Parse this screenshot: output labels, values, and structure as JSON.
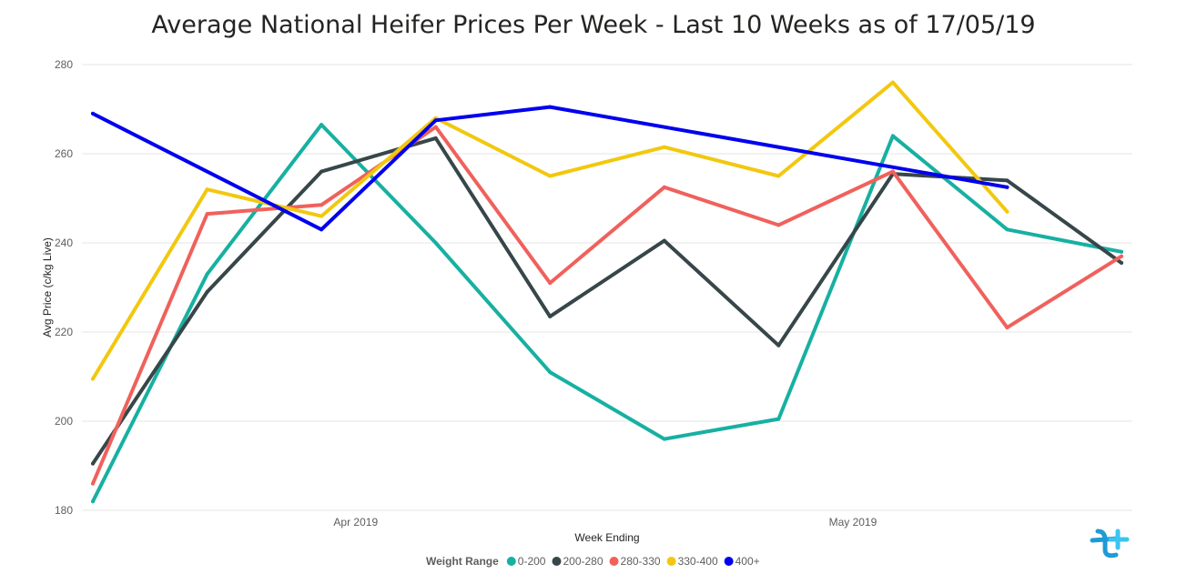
{
  "chart_data": {
    "type": "line",
    "title": "Average National Heifer Prices Per Week - Last 10 Weeks as of 17/05/19",
    "xlabel": "Week Ending",
    "ylabel": "Avg Price (c/kg Live)",
    "x_tick_labels": [
      {
        "label": "Apr 2019",
        "at": 2.3
      },
      {
        "label": "May 2019",
        "at": 6.65
      }
    ],
    "y_ticks": [
      180,
      200,
      220,
      240,
      260,
      280
    ],
    "ylim": [
      180,
      280
    ],
    "x_index_range": [
      0,
      9
    ],
    "grid": true,
    "legend_title": "Weight Range",
    "legend_position": "bottom",
    "series": [
      {
        "name": "0-200",
        "color": "#17b0a2",
        "values": [
          182,
          233,
          266.5,
          240,
          211,
          196,
          200.5,
          264,
          243,
          238
        ]
      },
      {
        "name": "200-280",
        "color": "#374649",
        "values": [
          190.5,
          229,
          256,
          263.5,
          223.5,
          240.5,
          217,
          255.5,
          254,
          235.5
        ]
      },
      {
        "name": "280-330",
        "color": "#f0615c",
        "values": [
          186,
          246.5,
          248.5,
          266,
          231,
          252.5,
          244,
          256,
          221,
          237
        ]
      },
      {
        "name": "330-400",
        "color": "#f2c80f",
        "values": [
          209.5,
          252,
          246,
          268,
          255,
          261.5,
          255,
          276,
          247,
          null
        ]
      },
      {
        "name": "400+",
        "color": "#0000ee",
        "values": [
          269,
          null,
          243,
          267.5,
          270.5,
          null,
          null,
          null,
          252.5,
          null
        ]
      }
    ]
  },
  "logo": {
    "text": "t"
  }
}
